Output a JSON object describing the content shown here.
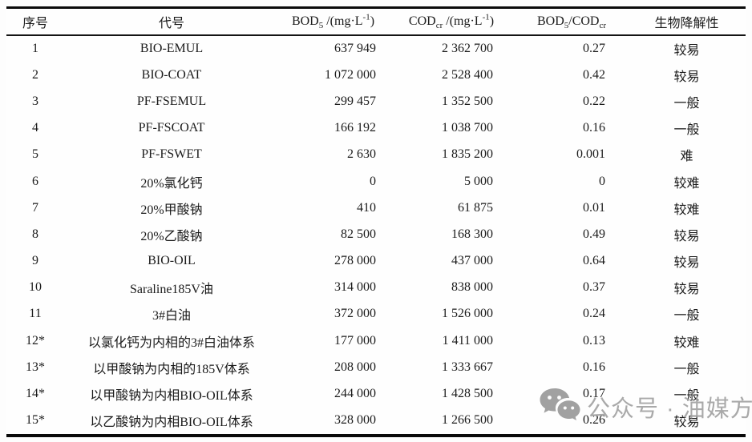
{
  "watermark": {
    "text": "公众号 · 油媒方",
    "color": "#a2a2a2",
    "icon": "wechat-icon",
    "icon_color": "#9a9a9a"
  },
  "table": {
    "columns": [
      {
        "id": "num",
        "label": "序号"
      },
      {
        "id": "code",
        "label": "代号"
      },
      {
        "id": "bod",
        "label_parts": [
          {
            "t": "BOD"
          },
          {
            "t": "5",
            "s": "sub"
          },
          {
            "t": " /(mg·L"
          },
          {
            "t": "-1",
            "s": "sup"
          },
          {
            "t": ")"
          }
        ]
      },
      {
        "id": "cod",
        "label_parts": [
          {
            "t": "COD"
          },
          {
            "t": "cr",
            "s": "sub"
          },
          {
            "t": " /(mg·L"
          },
          {
            "t": "-1",
            "s": "sup"
          },
          {
            "t": ")"
          }
        ]
      },
      {
        "id": "ratio",
        "label_parts": [
          {
            "t": "BOD"
          },
          {
            "t": "5",
            "s": "sub"
          },
          {
            "t": "/COD"
          },
          {
            "t": "cr",
            "s": "sub"
          }
        ]
      },
      {
        "id": "bio",
        "label": "生物降解性"
      }
    ],
    "rows": [
      {
        "num": "1",
        "code": "BIO-EMUL",
        "bod": "637 949",
        "cod": "2 362 700",
        "ratio": "0.27",
        "bio": "较易"
      },
      {
        "num": "2",
        "code": "BIO-COAT",
        "bod": "1 072 000",
        "cod": "2 528 400",
        "ratio": "0.42",
        "bio": "较易"
      },
      {
        "num": "3",
        "code": "PF-FSEMUL",
        "bod": "299 457",
        "cod": "1 352 500",
        "ratio": "0.22",
        "bio": "一般"
      },
      {
        "num": "4",
        "code": "PF-FSCOAT",
        "bod": "166 192",
        "cod": "1 038 700",
        "ratio": "0.16",
        "bio": "一般"
      },
      {
        "num": "5",
        "code": "PF-FSWET",
        "bod": "2 630",
        "cod": "1 835 200",
        "ratio": "0.001",
        "bio": "难"
      },
      {
        "num": "6",
        "code": "20%氯化钙",
        "bod": "0",
        "cod": "5 000",
        "ratio": "0",
        "bio": "较难"
      },
      {
        "num": "7",
        "code": "20%甲酸钠",
        "bod": "410",
        "cod": "61 875",
        "ratio": "0.01",
        "bio": "较难"
      },
      {
        "num": "8",
        "code": "20%乙酸钠",
        "bod": "82 500",
        "cod": "168 300",
        "ratio": "0.49",
        "bio": "较易"
      },
      {
        "num": "9",
        "code": "BIO-OIL",
        "bod": "278 000",
        "cod": "437 000",
        "ratio": "0.64",
        "bio": "较易"
      },
      {
        "num": "10",
        "code": "Saraline185V油",
        "bod": "314 000",
        "cod": "838 000",
        "ratio": "0.37",
        "bio": "较易"
      },
      {
        "num": "11",
        "code": "3#白油",
        "bod": "372 000",
        "cod": "1 526 000",
        "ratio": "0.24",
        "bio": "一般"
      },
      {
        "num": "12*",
        "code": "以氯化钙为内相的3#白油体系",
        "bod": "177 000",
        "cod": "1 411 000",
        "ratio": "0.13",
        "bio": "较难"
      },
      {
        "num": "13*",
        "code": "以甲酸钠为内相的185V体系",
        "bod": "208 000",
        "cod": "1 333 667",
        "ratio": "0.16",
        "bio": "一般"
      },
      {
        "num": "14*",
        "code": "以甲酸钠为内相BIO-OIL体系",
        "bod": "244 000",
        "cod": "1 428 500",
        "ratio": "0.17",
        "bio": "一般"
      },
      {
        "num": "15*",
        "code": "以乙酸钠为内相BIO-OIL体系",
        "bod": "328 000",
        "cod": "1 266 500",
        "ratio": "0.26",
        "bio": "较易"
      }
    ]
  }
}
